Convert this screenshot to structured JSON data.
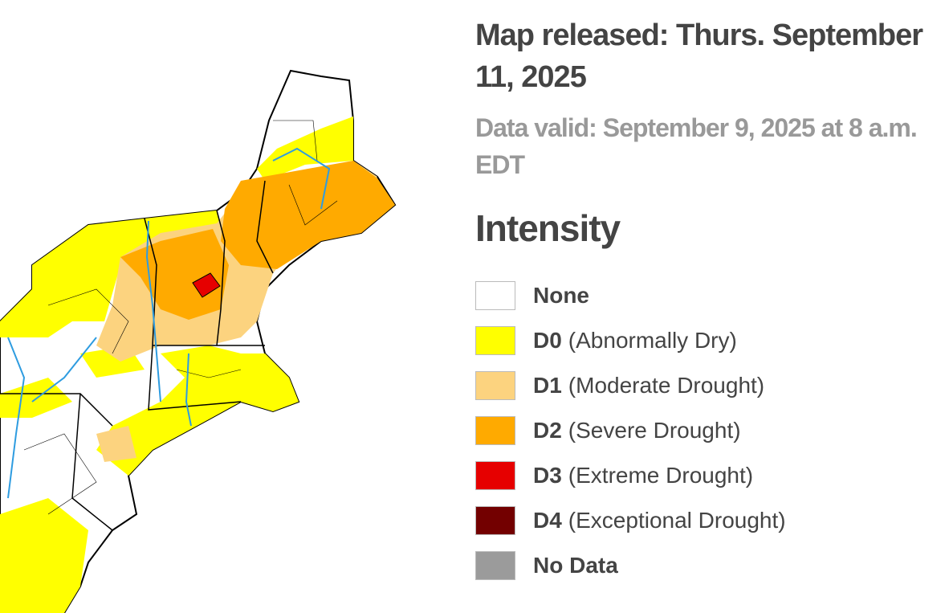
{
  "header": {
    "title": "Map released: Thurs. September 11, 2025",
    "subtitle": "Data valid: September 9, 2025 at 8 a.m. EDT"
  },
  "legend": {
    "title": "Intensity",
    "items": [
      {
        "code": "None",
        "color": "#ffffff"
      },
      {
        "code": "D0",
        "description": "(Abnormally Dry)",
        "color": "#ffff00"
      },
      {
        "code": "D1",
        "description": "(Moderate Drought)",
        "color": "#fcd37f"
      },
      {
        "code": "D2",
        "description": "(Severe Drought)",
        "color": "#ffaa00"
      },
      {
        "code": "D3",
        "description": "(Extreme Drought)",
        "color": "#e60000"
      },
      {
        "code": "D4",
        "description": "(Exceptional Drought)",
        "color": "#730000"
      },
      {
        "code": "No Data",
        "color": "#9b9b9b"
      }
    ]
  }
}
